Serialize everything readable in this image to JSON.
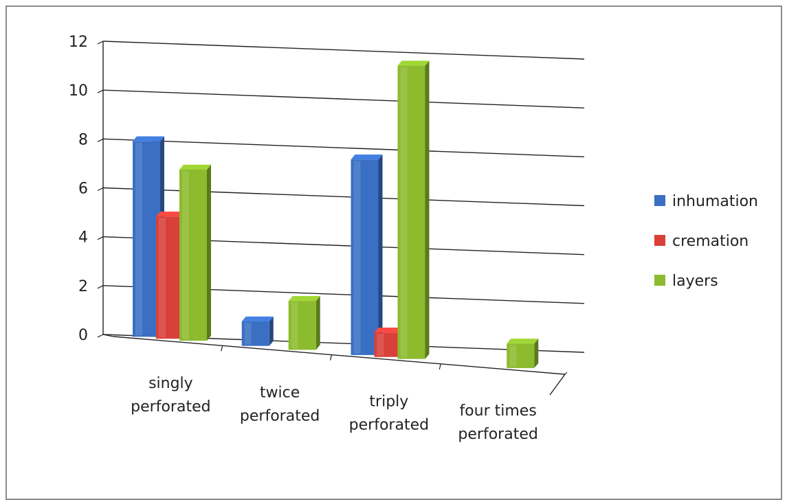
{
  "chart_data": {
    "type": "bar",
    "title": "",
    "xlabel": "",
    "ylabel": "",
    "ylim": [
      0,
      12
    ],
    "yticks": [
      0,
      2,
      4,
      6,
      8,
      10,
      12
    ],
    "grid": true,
    "legend_position": "right",
    "categories": [
      [
        "singly",
        "perforated"
      ],
      [
        "twice",
        "perforated"
      ],
      [
        "triply",
        "perforated"
      ],
      [
        "four times",
        "perforated"
      ]
    ],
    "series": [
      {
        "name": "inhumation",
        "color": "#3a6fc4",
        "values": [
          8,
          1,
          8,
          0
        ]
      },
      {
        "name": "cremation",
        "color": "#d9403a",
        "values": [
          5,
          0,
          1,
          0
        ]
      },
      {
        "name": "layers",
        "color": "#8cbb2e",
        "values": [
          7,
          2,
          12,
          1
        ]
      }
    ]
  }
}
